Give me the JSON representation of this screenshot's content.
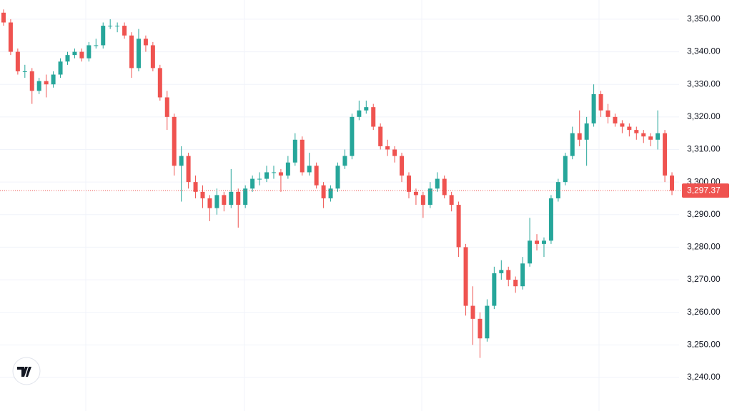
{
  "chart_data": {
    "type": "candlestick",
    "open": [
      3352,
      3349,
      3340,
      3334,
      3334,
      3328,
      3331,
      3330,
      3333,
      3337,
      3339,
      3340,
      3338,
      3342,
      3342,
      3348,
      3348,
      3348,
      3345,
      3335,
      3344,
      3342,
      3335,
      3326,
      3320,
      3305,
      3308,
      3300,
      3297,
      3295,
      3292,
      3296,
      3293,
      3297,
      3293,
      3298,
      3301,
      3301,
      3303,
      3303,
      3302,
      3306,
      3313,
      3303,
      3305,
      3299,
      3295,
      3298,
      3305,
      3308,
      3320,
      3322,
      3323,
      3317,
      3311,
      3310,
      3308,
      3302,
      3297,
      3296,
      3293,
      3298,
      3301,
      3296,
      3293,
      3280,
      3262,
      3258,
      3252,
      3262,
      3272,
      3273,
      3270,
      3268,
      3275,
      3282,
      3281,
      3282,
      3295,
      3300,
      3308,
      3315,
      3313,
      3318,
      3327,
      3322,
      3320,
      3318,
      3317,
      3316,
      3315,
      3314,
      3313,
      3315,
      3302
    ],
    "high": [
      3353,
      3350,
      3341,
      3336,
      3335,
      3332,
      3333,
      3334,
      3338,
      3340,
      3341,
      3341,
      3343,
      3344,
      3349,
      3350,
      3349,
      3349,
      3346,
      3347,
      3345,
      3343,
      3336,
      3328,
      3321,
      3311,
      3309,
      3302,
      3299,
      3296,
      3298,
      3297,
      3304,
      3298,
      3299,
      3302,
      3303,
      3305,
      3305,
      3304,
      3308,
      3315,
      3314,
      3309,
      3306,
      3300,
      3299,
      3306,
      3310,
      3321,
      3325,
      3325,
      3324,
      3318,
      3313,
      3311,
      3309,
      3303,
      3298,
      3297,
      3300,
      3303,
      3302,
      3297,
      3294,
      3281,
      3268,
      3260,
      3264,
      3274,
      3276,
      3274,
      3271,
      3277,
      3289,
      3284,
      3283,
      3296,
      3301,
      3309,
      3317,
      3322,
      3320,
      3330,
      3328,
      3324,
      3321,
      3319,
      3318,
      3317,
      3316,
      3315,
      3322,
      3316,
      3303
    ],
    "low": [
      3348,
      3339,
      3333,
      3332,
      3324,
      3327,
      3326,
      3329,
      3332,
      3336,
      3338,
      3337,
      3337,
      3341,
      3341,
      3347,
      3346,
      3344,
      3332,
      3334,
      3340,
      3334,
      3325,
      3316,
      3302,
      3294,
      3298,
      3295,
      3292,
      3288,
      3290,
      3291,
      3292,
      3286,
      3292,
      3297,
      3299,
      3300,
      3301,
      3297,
      3301,
      3305,
      3302,
      3302,
      3298,
      3292,
      3294,
      3297,
      3304,
      3307,
      3319,
      3321,
      3316,
      3310,
      3308,
      3306,
      3300,
      3295,
      3293,
      3289,
      3292,
      3297,
      3295,
      3291,
      3277,
      3259,
      3250,
      3246,
      3251,
      3261,
      3270,
      3268,
      3266,
      3267,
      3274,
      3279,
      3277,
      3281,
      3294,
      3299,
      3307,
      3311,
      3305,
      3317,
      3320,
      3318,
      3317,
      3315,
      3314,
      3313,
      3312,
      3311,
      3310,
      3300,
      3296
    ],
    "close": [
      3349,
      3340,
      3334,
      3334,
      3328,
      3331,
      3330,
      3333,
      3337,
      3339,
      3340,
      3338,
      3342,
      3342,
      3348,
      3348,
      3348,
      3345,
      3335,
      3344,
      3342,
      3335,
      3326,
      3320,
      3305,
      3308,
      3300,
      3297,
      3295,
      3292,
      3296,
      3293,
      3297,
      3293,
      3298,
      3301,
      3301,
      3303,
      3303,
      3302,
      3306,
      3313,
      3303,
      3305,
      3299,
      3295,
      3298,
      3305,
      3308,
      3320,
      3322,
      3323,
      3317,
      3311,
      3310,
      3308,
      3302,
      3297,
      3296,
      3293,
      3298,
      3301,
      3296,
      3293,
      3280,
      3262,
      3258,
      3252,
      3262,
      3272,
      3273,
      3270,
      3268,
      3275,
      3282,
      3281,
      3282,
      3295,
      3300,
      3308,
      3315,
      3313,
      3318,
      3327,
      3322,
      3320,
      3318,
      3317,
      3316,
      3315,
      3314,
      3313,
      3315,
      3302,
      3297.37
    ],
    "up_color": "#26a69a",
    "down_color": "#ef5350",
    "ylim": [
      3229.7,
      3355.9
    ],
    "yticks": [
      {
        "value": 3240,
        "label": "3,240.00"
      },
      {
        "value": 3250,
        "label": "3,250.00"
      },
      {
        "value": 3260,
        "label": "3,260.00"
      },
      {
        "value": 3270,
        "label": "3,270.00"
      },
      {
        "value": 3280,
        "label": "3,280.00"
      },
      {
        "value": 3290,
        "label": "3,290.00"
      },
      {
        "value": 3300,
        "label": "3,300.00"
      },
      {
        "value": 3310,
        "label": "3,310.00"
      },
      {
        "value": 3320,
        "label": "3,320.00"
      },
      {
        "value": 3330,
        "label": "3,330.00"
      },
      {
        "value": 3340,
        "label": "3,340.00"
      },
      {
        "value": 3350,
        "label": "3,350.00"
      }
    ],
    "current_price": {
      "value": 3297.37,
      "label": "3,297.37"
    },
    "grid": true
  }
}
